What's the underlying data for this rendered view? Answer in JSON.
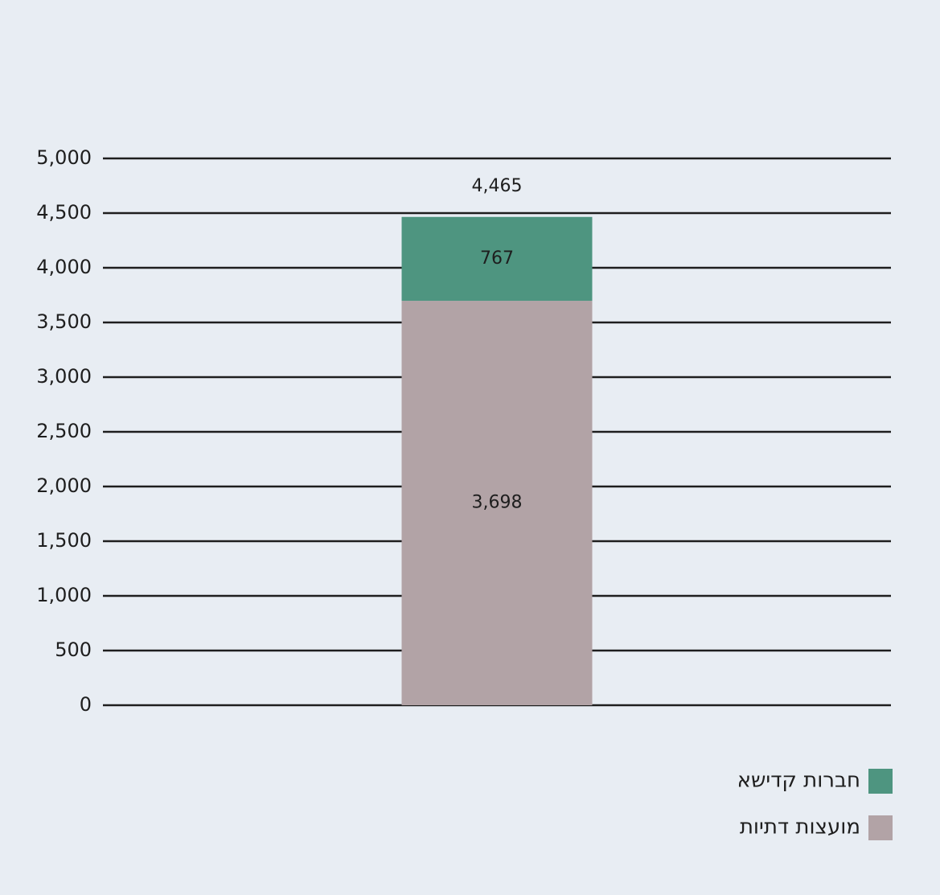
{
  "chart_data": {
    "type": "stacked-bar",
    "categories": [
      null
    ],
    "series": [
      {
        "name": "מועצות דתיות",
        "color": "#b2a3a6",
        "values": [
          3698
        ],
        "value_labels": [
          "3,698"
        ]
      },
      {
        "name": "חברות קדישא",
        "color": "#4e9580",
        "values": [
          767
        ]
      }
    ],
    "totals": [
      4465
    ],
    "total_labels": [
      "4,465"
    ],
    "ylim": [
      0,
      5000
    ],
    "yticks": [
      0,
      500,
      {
        "value": 1000,
        "label": "1,000"
      },
      {
        "value": 1500,
        "label": "1,500"
      },
      {
        "value": 2000,
        "label": "2,000"
      },
      {
        "value": 2500,
        "label": "2,500"
      },
      {
        "value": 3000,
        "label": "3,000"
      },
      {
        "value": 3500,
        "label": "3,500"
      },
      {
        "value": 4000,
        "label": "4,000"
      },
      {
        "value": 4500,
        "label": "4,500"
      },
      {
        "value": 5000,
        "label": "5,000"
      }
    ],
    "grid": true
  }
}
